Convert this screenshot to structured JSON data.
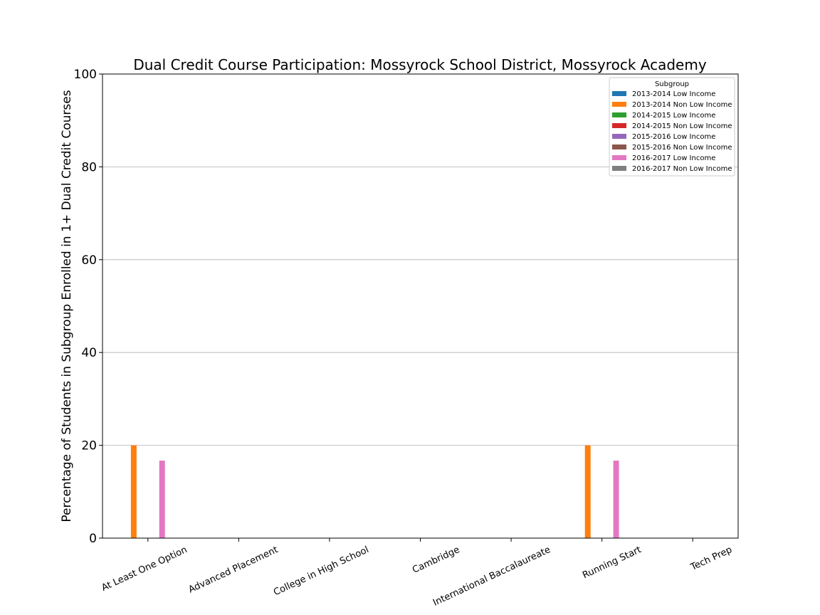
{
  "chart_data": {
    "type": "bar",
    "title": "Dual Credit Course Participation: Mossyrock School District, Mossyrock Academy",
    "xlabel": "",
    "ylabel": "Percentage of Students in Subgroup Enrolled in 1+ Dual Credit Courses",
    "ylim": [
      0,
      100
    ],
    "yticks": [
      0,
      20,
      40,
      60,
      80,
      100
    ],
    "grid": "y",
    "legend_title": "Subgroup",
    "legend_position": "top-right",
    "categories": [
      "At Least One Option",
      "Advanced Placement",
      "College in High School",
      "Cambridge",
      "International Baccalaureate",
      "Running Start",
      "Tech Prep"
    ],
    "series": [
      {
        "name": "2013-2014 Low Income",
        "color": "#1f77b4",
        "values": [
          0,
          0,
          0,
          0,
          0,
          0,
          0
        ]
      },
      {
        "name": "2013-2014 Non Low Income",
        "color": "#ff7f0e",
        "values": [
          20,
          0,
          0,
          0,
          0,
          20,
          0
        ]
      },
      {
        "name": "2014-2015 Low Income",
        "color": "#2ca02c",
        "values": [
          0,
          0,
          0,
          0,
          0,
          0,
          0
        ]
      },
      {
        "name": "2014-2015 Non Low Income",
        "color": "#d62728",
        "values": [
          0,
          0,
          0,
          0,
          0,
          0,
          0
        ]
      },
      {
        "name": "2015-2016 Low Income",
        "color": "#9467bd",
        "values": [
          0,
          0,
          0,
          0,
          0,
          0,
          0
        ]
      },
      {
        "name": "2015-2016 Non Low Income",
        "color": "#8c564b",
        "values": [
          0,
          0,
          0,
          0,
          0,
          0,
          0
        ]
      },
      {
        "name": "2016-2017 Low Income",
        "color": "#e377c2",
        "values": [
          16.7,
          0,
          0,
          0,
          0,
          16.7,
          0
        ]
      },
      {
        "name": "2016-2017 Non Low Income",
        "color": "#7f7f7f",
        "values": [
          0,
          0,
          0,
          0,
          0,
          0,
          0
        ]
      }
    ]
  }
}
